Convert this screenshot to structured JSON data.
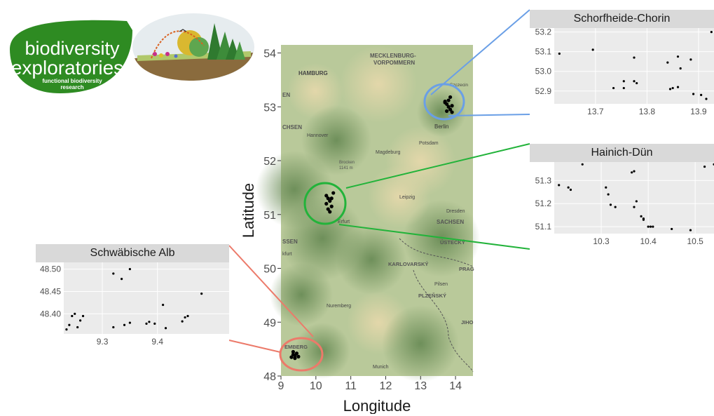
{
  "logo": {
    "line1": "biodiversity",
    "line2": "exploratories",
    "tag1": "functional biodiversity",
    "tag2": "research"
  },
  "map": {
    "xlabel": "Longitude",
    "ylabel": "Latitude",
    "xticks": [
      "9",
      "10",
      "11",
      "12",
      "13",
      "14"
    ],
    "yticks": [
      "48",
      "49",
      "50",
      "51",
      "52",
      "53",
      "54"
    ],
    "labels": [
      {
        "text": "MECKLENBURG-",
        "kind": "region"
      },
      {
        "text": "VORPOMMERN",
        "kind": "region"
      },
      {
        "text": "HAMBURG",
        "kind": "city"
      },
      {
        "text": "Szczecin",
        "kind": "city"
      },
      {
        "text": "Berlin",
        "kind": "city"
      },
      {
        "text": "Hannover",
        "kind": "town"
      },
      {
        "text": "Potsdam",
        "kind": "town"
      },
      {
        "text": "Magdeburg",
        "kind": "town"
      },
      {
        "text": "Brocken",
        "kind": "peak"
      },
      {
        "text": "1141 m",
        "kind": "peak"
      },
      {
        "text": "Leipzig",
        "kind": "town"
      },
      {
        "text": "Dresden",
        "kind": "town"
      },
      {
        "text": "SACHSEN",
        "kind": "region"
      },
      {
        "text": "Erfurt",
        "kind": "town"
      },
      {
        "text": "ÚSTECKÝ",
        "kind": "region"
      },
      {
        "text": "KARLOVARSKÝ",
        "kind": "region"
      },
      {
        "text": "PRAG",
        "kind": "region"
      },
      {
        "text": "Pilsen",
        "kind": "town"
      },
      {
        "text": "PLZEŇSKÝ",
        "kind": "region"
      },
      {
        "text": "Nuremberg",
        "kind": "town"
      },
      {
        "text": "JIHO",
        "kind": "region"
      },
      {
        "text": "Munich",
        "kind": "town"
      },
      {
        "text": "CHSEN",
        "kind": "region"
      },
      {
        "text": "SSEN",
        "kind": "region"
      },
      {
        "text": "kfurt",
        "kind": "town"
      },
      {
        "text": "EMBERG",
        "kind": "region"
      },
      {
        "text": "EN",
        "kind": "region"
      }
    ]
  },
  "chart_data": [
    {
      "type": "scatter",
      "title": "Schorfheide-Chorin",
      "xlim": [
        13.62,
        13.93
      ],
      "ylim": [
        52.835,
        53.22
      ],
      "xticks": [
        13.7,
        13.8,
        13.9
      ],
      "yticks": [
        52.9,
        53.0,
        53.1,
        53.2
      ],
      "x": [
        13.63,
        13.695,
        13.755,
        13.775,
        13.775,
        13.78,
        13.735,
        13.755,
        13.84,
        13.845,
        13.85,
        13.86,
        13.865,
        13.86,
        13.885,
        13.89,
        13.905,
        13.915,
        13.925
      ],
      "y": [
        53.09,
        53.11,
        52.95,
        53.07,
        52.95,
        52.94,
        52.915,
        52.915,
        53.045,
        52.91,
        52.915,
        52.92,
        53.015,
        53.075,
        53.06,
        52.885,
        52.88,
        52.86,
        53.2
      ],
      "ytick_labels": [
        "52.9",
        "53.0",
        "53.1",
        "53.2"
      ],
      "xtick_labels": [
        "13.7",
        "13.8",
        "13.9"
      ]
    },
    {
      "type": "scatter",
      "title": "Hainich-Dün",
      "xlim": [
        10.2,
        10.54
      ],
      "ylim": [
        51.07,
        51.38
      ],
      "xticks": [
        10.3,
        10.4,
        10.5
      ],
      "yticks": [
        51.1,
        51.2,
        51.3
      ],
      "x": [
        10.21,
        10.23,
        10.235,
        10.26,
        10.31,
        10.315,
        10.32,
        10.33,
        10.365,
        10.37,
        10.37,
        10.375,
        10.385,
        10.39,
        10.39,
        10.4,
        10.405,
        10.41,
        10.45,
        10.49,
        10.52,
        10.54
      ],
      "y": [
        51.28,
        51.27,
        51.26,
        51.37,
        51.27,
        51.24,
        51.195,
        51.185,
        51.335,
        51.34,
        51.185,
        51.21,
        51.145,
        51.135,
        51.13,
        51.1,
        51.1,
        51.1,
        51.09,
        51.085,
        51.36,
        51.37
      ],
      "ytick_labels": [
        "51.1",
        "51.2",
        "51.3"
      ],
      "xtick_labels": [
        "10.3",
        "10.4",
        "10.5"
      ]
    },
    {
      "type": "scatter",
      "title": "Schwäbische Alb",
      "xlim": [
        9.23,
        9.53
      ],
      "ylim": [
        48.355,
        48.515
      ],
      "xticks": [
        9.3,
        9.4
      ],
      "yticks": [
        48.4,
        48.45,
        48.5
      ],
      "x": [
        9.235,
        9.24,
        9.245,
        9.25,
        9.255,
        9.26,
        9.265,
        9.32,
        9.32,
        9.335,
        9.34,
        9.35,
        9.35,
        9.38,
        9.385,
        9.395,
        9.41,
        9.415,
        9.445,
        9.45,
        9.455,
        9.48
      ],
      "y": [
        48.365,
        48.375,
        48.395,
        48.4,
        48.37,
        48.385,
        48.395,
        48.49,
        48.37,
        48.478,
        48.375,
        48.5,
        48.38,
        48.378,
        48.382,
        48.378,
        48.42,
        48.368,
        48.383,
        48.392,
        48.395,
        48.445
      ],
      "ytick_labels": [
        "48.40",
        "48.45",
        "48.50"
      ],
      "xtick_labels": [
        "9.3",
        "9.4"
      ]
    },
    {
      "type": "scatter",
      "title": "",
      "xlim": [
        9,
        14.5
      ],
      "ylim": [
        48,
        54.15
      ],
      "x": [
        13.7,
        13.75,
        13.8,
        13.85,
        13.75,
        13.9,
        13.8,
        13.7,
        13.85,
        13.9,
        10.3,
        10.35,
        10.4,
        10.3,
        10.45,
        10.35,
        10.4,
        10.5,
        10.45,
        9.3,
        9.35,
        9.4,
        9.45,
        9.5,
        9.35,
        9.4
      ],
      "y": [
        53.1,
        53.05,
        53.0,
        52.95,
        52.92,
        52.9,
        53.12,
        53.08,
        53.18,
        53.02,
        51.35,
        51.3,
        51.25,
        51.2,
        51.15,
        51.1,
        51.05,
        51.4,
        51.3,
        48.35,
        48.4,
        48.38,
        48.42,
        48.36,
        48.45,
        48.33
      ]
    }
  ],
  "colors": {
    "highlight_north": "#6a9fe6",
    "highlight_central": "#22b33a",
    "highlight_south": "#ec7a6a",
    "logo_green": "#2e8b22",
    "panel_bg": "#ebebeb",
    "strip_bg": "#d9d9d9"
  }
}
